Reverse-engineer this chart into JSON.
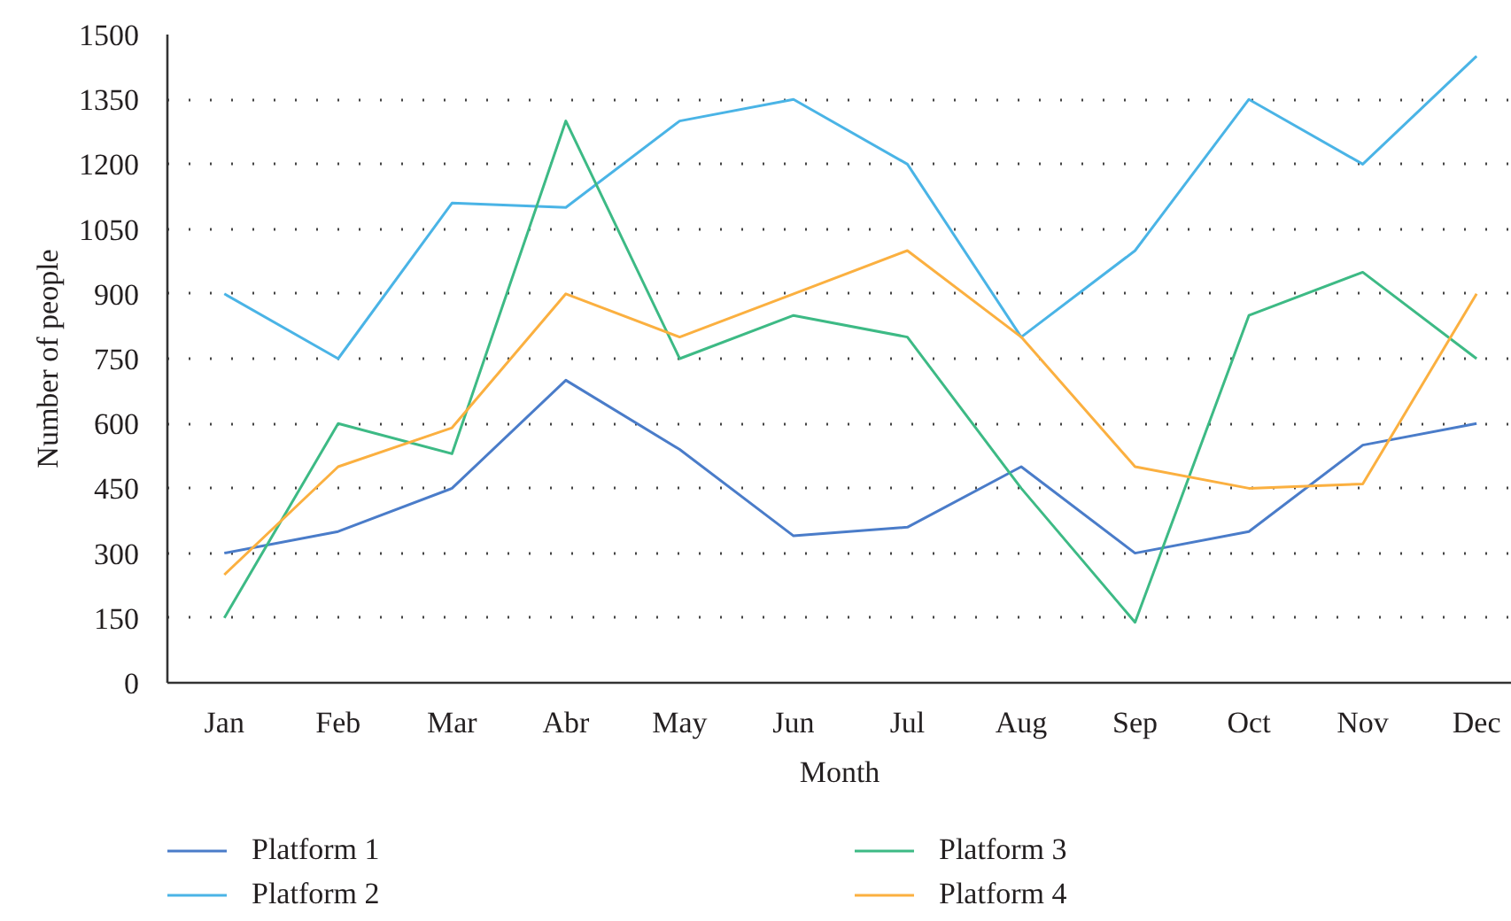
{
  "chart_data": {
    "type": "line",
    "xlabel": "Month",
    "ylabel": "Number of people",
    "categories": [
      "Jan",
      "Feb",
      "Mar",
      "Abr",
      "May",
      "Jun",
      "Jul",
      "Aug",
      "Sep",
      "Oct",
      "Nov",
      "Dec"
    ],
    "series": [
      {
        "name": "Platform 1",
        "color": "#4a7cc9",
        "values": [
          300,
          350,
          450,
          700,
          540,
          340,
          360,
          500,
          300,
          350,
          550,
          600
        ]
      },
      {
        "name": "Platform 2",
        "color": "#4ab4e6",
        "values": [
          900,
          750,
          1110,
          1100,
          1300,
          1350,
          1200,
          800,
          1000,
          1350,
          1200,
          1450
        ]
      },
      {
        "name": "Platform 3",
        "color": "#3dba85",
        "values": [
          150,
          600,
          530,
          1300,
          750,
          850,
          800,
          450,
          140,
          850,
          950,
          750
        ]
      },
      {
        "name": "Platform 4",
        "color": "#fbb040",
        "values": [
          250,
          500,
          590,
          900,
          800,
          900,
          1000,
          800,
          500,
          450,
          460,
          900
        ]
      }
    ],
    "ylim": [
      0,
      1500
    ],
    "yticks": [
      0,
      150,
      300,
      450,
      600,
      750,
      900,
      1050,
      1200,
      1350,
      1500
    ],
    "grid": "y",
    "legend": "bottom"
  }
}
